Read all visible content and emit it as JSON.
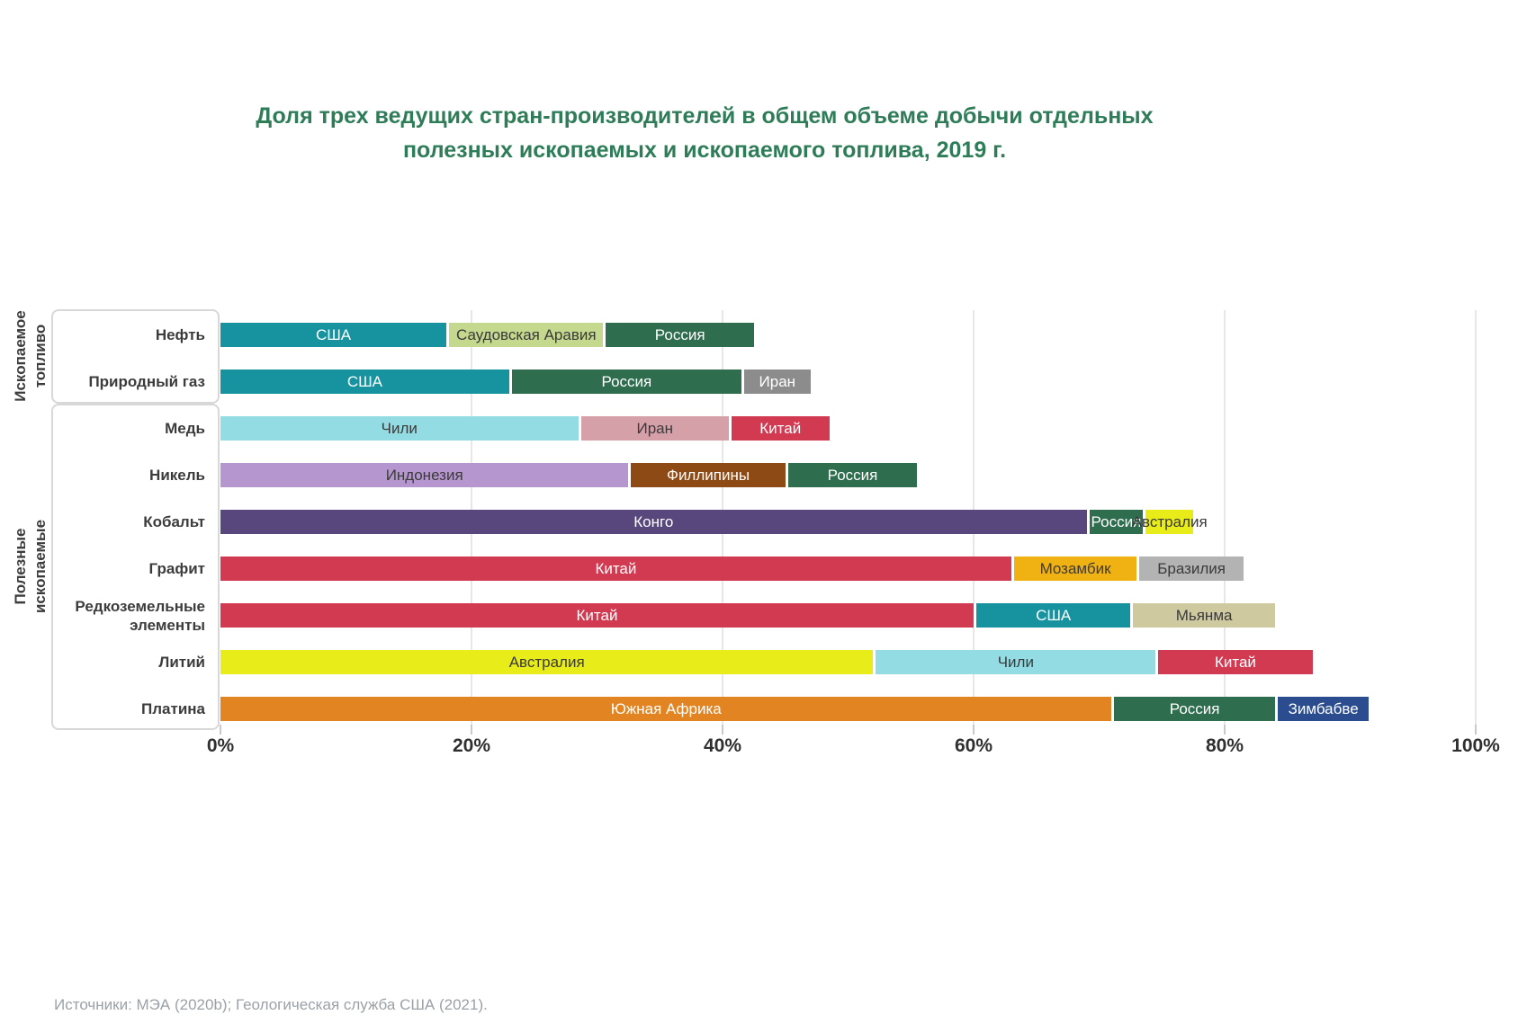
{
  "title": {
    "line1": "Доля трех ведущих стран-производителей в общем объеме добычи отдельных",
    "line2": "полезных ископаемых и ископаемого топлива, 2019 г."
  },
  "accent_title_color": "#2e7d58",
  "groups": [
    {
      "label": "Ископаемое топливо",
      "line1": "Ископаемое",
      "line2": "топливо"
    },
    {
      "label": "Полезные ископаемые",
      "line1": "Полезные",
      "line2": "ископаемые"
    }
  ],
  "source": "Источники: МЭА (2020b); Геологическая служба США (2021).",
  "chart_data": {
    "type": "bar",
    "orientation": "horizontal-stacked",
    "title": "Доля трех ведущих стран-производителей в общем объеме добычи отдельных полезных ископаемых и ископаемого топлива, 2019 г.",
    "xlabel": "",
    "ylabel": "",
    "unit": "%",
    "xlim": [
      0,
      100
    ],
    "x_ticks": [
      "0%",
      "20%",
      "40%",
      "60%",
      "80%",
      "100%"
    ],
    "x_tick_values": [
      0,
      20,
      40,
      60,
      80,
      100
    ],
    "grid": true,
    "legend": "labels-inside-bars",
    "rows": [
      {
        "category": "Нефть",
        "group": "Ископаемое топливо",
        "segments": [
          {
            "label": "США",
            "value": 18,
            "color": "#16939e",
            "text": "light"
          },
          {
            "label": "Саудовская Аравия",
            "value": 12.5,
            "color": "#c5d98e",
            "text": "dark"
          },
          {
            "label": "Россия",
            "value": 12,
            "color": "#2e6e4e",
            "text": "light"
          }
        ]
      },
      {
        "category": "Природный газ",
        "group": "Ископаемое топливо",
        "segments": [
          {
            "label": "США",
            "value": 23,
            "color": "#16939e",
            "text": "light"
          },
          {
            "label": "Россия",
            "value": 18.5,
            "color": "#2e6e4e",
            "text": "light"
          },
          {
            "label": "Иран",
            "value": 5.5,
            "color": "#8c8c8c",
            "text": "light"
          }
        ]
      },
      {
        "category": "Медь",
        "group": "Полезные ископаемые",
        "segments": [
          {
            "label": "Чили",
            "value": 28.5,
            "color": "#93dce4",
            "text": "dark"
          },
          {
            "label": "Иран",
            "value": 12,
            "color": "#d6a0a8",
            "text": "dark"
          },
          {
            "label": "Китай",
            "value": 8,
            "color": "#d23a52",
            "text": "light"
          }
        ]
      },
      {
        "category": "Никель",
        "group": "Полезные ископаемые",
        "segments": [
          {
            "label": "Индонезия",
            "value": 32.5,
            "color": "#b696cf",
            "text": "dark"
          },
          {
            "label": "Филлипины",
            "value": 12.5,
            "color": "#8e4a15",
            "text": "light"
          },
          {
            "label": "Россия",
            "value": 10.5,
            "color": "#2e6e4e",
            "text": "light"
          }
        ]
      },
      {
        "category": "Кобальт",
        "group": "Полезные ископаемые",
        "segments": [
          {
            "label": "Конго",
            "value": 69,
            "color": "#57477d",
            "text": "light"
          },
          {
            "label": "Россия",
            "value": 4.5,
            "color": "#2e6e4e",
            "text": "light"
          },
          {
            "label": "Австралия",
            "value": 4,
            "color": "#e8ec18",
            "text": "dark"
          }
        ]
      },
      {
        "category": "Графит",
        "group": "Полезные ископаемые",
        "segments": [
          {
            "label": "Китай",
            "value": 63,
            "color": "#d23a52",
            "text": "light"
          },
          {
            "label": "Мозамбик",
            "value": 10,
            "color": "#f0b113",
            "text": "dark"
          },
          {
            "label": "Бразилия",
            "value": 8.5,
            "color": "#b3b3b3",
            "text": "dark"
          }
        ]
      },
      {
        "category": "Редкоземельные элементы",
        "group": "Полезные ископаемые",
        "segments": [
          {
            "label": "Китай",
            "value": 60,
            "color": "#d23a52",
            "text": "light"
          },
          {
            "label": "США",
            "value": 12.5,
            "color": "#16939e",
            "text": "light"
          },
          {
            "label": "Мьянма",
            "value": 11.5,
            "color": "#cfc9a0",
            "text": "dark"
          }
        ]
      },
      {
        "category": "Литий",
        "group": "Полезные ископаемые",
        "segments": [
          {
            "label": "Австралия",
            "value": 52,
            "color": "#e8ec18",
            "text": "dark"
          },
          {
            "label": "Чили",
            "value": 22.5,
            "color": "#93dce4",
            "text": "dark"
          },
          {
            "label": "Китай",
            "value": 12.5,
            "color": "#d23a52",
            "text": "light"
          }
        ]
      },
      {
        "category": "Платина",
        "group": "Полезные ископаемые",
        "segments": [
          {
            "label": "Южная Африка",
            "value": 71,
            "color": "#e28422",
            "text": "light"
          },
          {
            "label": "Россия",
            "value": 13,
            "color": "#2e6e4e",
            "text": "light"
          },
          {
            "label": "Зимбабве",
            "value": 7.5,
            "color": "#2b4d8f",
            "text": "light"
          }
        ]
      }
    ]
  }
}
